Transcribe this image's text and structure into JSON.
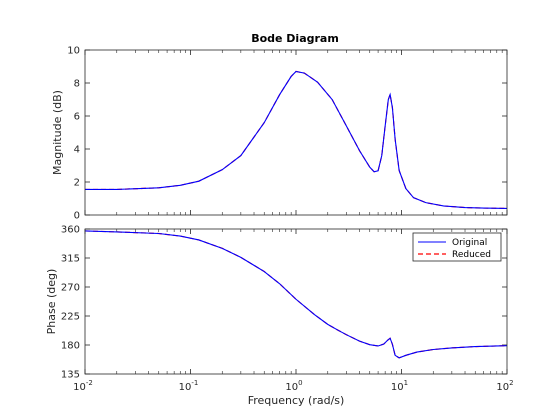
{
  "chart_data": {
    "type": "line",
    "title": "Bode Diagram",
    "xlabel": "Frequency  (rad/s)",
    "x_scale": "log",
    "xlim": [
      0.01,
      100
    ],
    "x_ticks": [
      0.01,
      0.1,
      1,
      10,
      100
    ],
    "x_tick_labels": [
      {
        "base": "10",
        "exp": "-2"
      },
      {
        "base": "10",
        "exp": "-1"
      },
      {
        "base": "10",
        "exp": "0"
      },
      {
        "base": "10",
        "exp": "1"
      },
      {
        "base": "10",
        "exp": "2"
      }
    ],
    "colors": {
      "original": "#0000ff",
      "reduced": "#ff0000"
    },
    "legend": {
      "placement": "top-right of phase axes",
      "entries": [
        {
          "label": "Original",
          "style": "solid",
          "color": "#0000ff"
        },
        {
          "label": "Reduced",
          "style": "dashed",
          "color": "#ff0000"
        }
      ]
    },
    "magnitude": {
      "ylabel": "Magnitude (dB)",
      "ylim": [
        0,
        10
      ],
      "y_ticks": [
        0,
        2,
        4,
        6,
        8,
        10
      ],
      "series": [
        {
          "name": "Original",
          "x": [
            0.01,
            0.02,
            0.05,
            0.08,
            0.12,
            0.2,
            0.3,
            0.5,
            0.7,
            0.9,
            1.0,
            1.2,
            1.6,
            2.2,
            3.0,
            4.0,
            5.0,
            5.5,
            6.0,
            6.5,
            7.0,
            7.5,
            7.8,
            8.2,
            8.7,
            9.5,
            11,
            13,
            17,
            25,
            40,
            60,
            100
          ],
          "y": [
            1.55,
            1.55,
            1.65,
            1.8,
            2.05,
            2.75,
            3.6,
            5.6,
            7.3,
            8.4,
            8.7,
            8.6,
            8.05,
            7.0,
            5.4,
            3.9,
            2.9,
            2.62,
            2.68,
            3.6,
            5.4,
            7.0,
            7.3,
            6.5,
            4.6,
            2.7,
            1.6,
            1.05,
            0.75,
            0.55,
            0.45,
            0.42,
            0.4
          ]
        },
        {
          "name": "Reduced",
          "x": [
            0.01,
            0.02,
            0.05,
            0.08,
            0.12,
            0.2,
            0.3,
            0.5,
            0.7,
            0.9,
            1.0,
            1.2,
            1.6,
            2.2,
            3.0,
            4.0,
            5.0,
            5.5,
            6.0,
            6.5,
            7.0,
            7.5,
            7.8,
            8.2,
            8.7,
            9.5,
            11,
            13,
            17,
            25,
            40,
            60,
            100
          ],
          "y": [
            1.55,
            1.55,
            1.65,
            1.8,
            2.05,
            2.75,
            3.6,
            5.6,
            7.3,
            8.4,
            8.7,
            8.6,
            8.05,
            7.0,
            5.4,
            3.9,
            2.9,
            2.62,
            2.68,
            3.6,
            5.4,
            7.0,
            7.3,
            6.5,
            4.6,
            2.7,
            1.6,
            1.05,
            0.75,
            0.55,
            0.45,
            0.42,
            0.4
          ]
        }
      ]
    },
    "phase": {
      "ylabel": "Phase (deg)",
      "ylim": [
        135,
        360
      ],
      "y_ticks": [
        135,
        180,
        225,
        270,
        315,
        360
      ],
      "series": [
        {
          "name": "Original",
          "x": [
            0.01,
            0.02,
            0.05,
            0.08,
            0.12,
            0.2,
            0.3,
            0.5,
            0.7,
            1.0,
            1.5,
            2.0,
            2.5,
            3.0,
            4.0,
            5.0,
            6.0,
            6.8,
            7.4,
            7.8,
            8.2,
            8.7,
            9.5,
            11,
            14,
            20,
            30,
            50,
            100
          ],
          "y": [
            357,
            355.5,
            353,
            349,
            343,
            330,
            316,
            294,
            275,
            251,
            227,
            212,
            203,
            196,
            186,
            180.5,
            178.5,
            181.5,
            187.5,
            190.5,
            181,
            164,
            160,
            164,
            169,
            173,
            175.5,
            177.5,
            179
          ]
        },
        {
          "name": "Reduced",
          "x": [
            0.01,
            0.02,
            0.05,
            0.08,
            0.12,
            0.2,
            0.3,
            0.5,
            0.7,
            1.0,
            1.5,
            2.0,
            2.5,
            3.0,
            4.0,
            5.0,
            6.0,
            6.8,
            7.4,
            7.8,
            8.2,
            8.7,
            9.5,
            11,
            14,
            20,
            30,
            50,
            100
          ],
          "y": [
            357,
            355.5,
            353,
            349,
            343,
            330,
            316,
            294,
            275,
            251,
            227,
            212,
            203,
            196,
            186,
            180.5,
            178.5,
            181.5,
            187.5,
            190.5,
            181,
            164,
            160,
            164,
            169,
            173,
            175.5,
            177.5,
            179
          ]
        }
      ]
    }
  }
}
